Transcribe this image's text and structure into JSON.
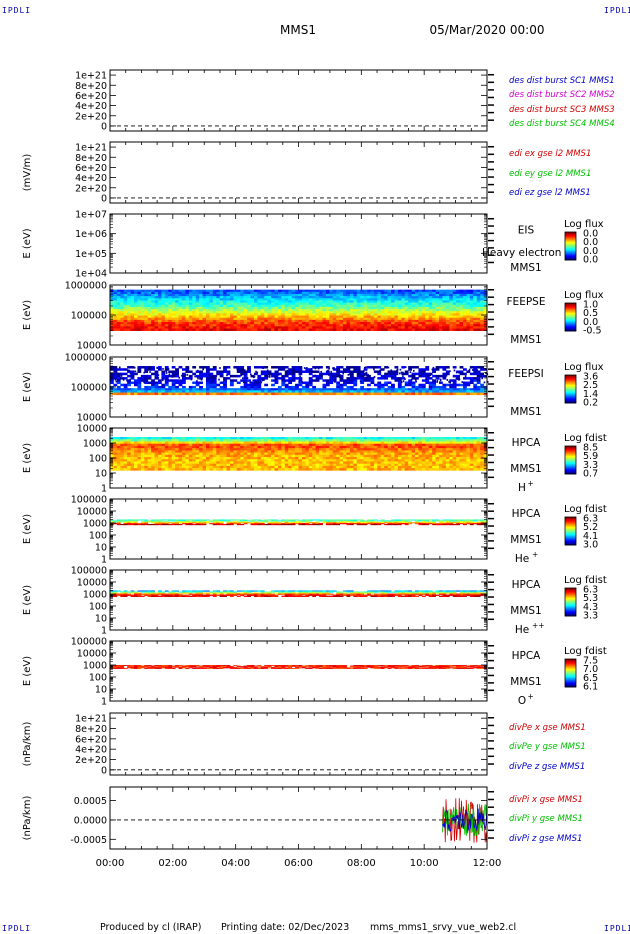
{
  "header": {
    "spacecraft": "MMS1",
    "date": "05/Mar/2020 00:00",
    "corner_label": "IPDLI"
  },
  "footer": {
    "producer": "Produced by cl (IRAP)",
    "printing_date": "Printing date: 02/Dec/2023",
    "filename": "mms_mms1_srvy_vue_web2.cl"
  },
  "colors": {
    "mms1": "#0000c8",
    "mms2": "#d000d0",
    "mms3": "#d00000",
    "mms4": "#00c000",
    "x_component": "#d00000",
    "y_component": "#00c000",
    "z_component": "#0000c8"
  },
  "chart_data": [
    {
      "id": "p1",
      "type": "line",
      "title": "",
      "xlabel": "",
      "ylabel": "",
      "ylim": [
        -1e+20,
        1.1e+21
      ],
      "yticks": [
        "0",
        "2e+20",
        "4e+20",
        "6e+20",
        "8e+20",
        "1e+21"
      ],
      "legend_position": "right",
      "series": [
        {
          "name": "des dist burst SC1 MMS1",
          "color_key": "mms1",
          "values": []
        },
        {
          "name": "des dist burst SC2 MMS2",
          "color_key": "mms2",
          "values": []
        },
        {
          "name": "des dist burst SC3 MMS3",
          "color_key": "mms3",
          "values": []
        },
        {
          "name": "des dist burst SC4 MMS4",
          "color_key": "mms4",
          "values": []
        }
      ]
    },
    {
      "id": "p2",
      "type": "line",
      "ylabel": "(mV/m)",
      "ylim": [
        -1e+20,
        1.1e+21
      ],
      "yticks": [
        "0",
        "2e+20",
        "4e+20",
        "6e+20",
        "8e+20",
        "1e+21"
      ],
      "legend_position": "right",
      "series": [
        {
          "name": "edi ex gse l2 MMS1",
          "color_key": "x_component",
          "values": []
        },
        {
          "name": "edi ey gse l2 MMS1",
          "color_key": "y_component",
          "values": []
        },
        {
          "name": "edi ez gse l2 MMS1",
          "color_key": "z_component",
          "values": []
        }
      ]
    },
    {
      "id": "p3",
      "type": "heatmap",
      "ylabel": "E (eV)",
      "scale": "log",
      "ylim": [
        10000,
        10000000
      ],
      "yticks": [
        "1e+04",
        "1e+05",
        "1e+06",
        "1e+07"
      ],
      "instrument": [
        "EIS",
        "MMS1"
      ],
      "overlap_text": "Heavy electron to",
      "colorbar": {
        "label": "Log flux",
        "ticks": [
          "0.0",
          "0.0",
          "0.0",
          "0.0"
        ]
      },
      "data": null
    },
    {
      "id": "p4",
      "type": "heatmap",
      "ylabel": "E (eV)",
      "scale": "log",
      "ylim": [
        10000,
        1000000
      ],
      "yticks": [
        "10000",
        "100000",
        "1000000"
      ],
      "instrument": [
        "FEEPSE",
        "MMS1"
      ],
      "colorbar": {
        "label": "Log flux",
        "ticks": [
          "1.0",
          "0.5",
          "0.0",
          "-0.5"
        ]
      },
      "data": {
        "energy_range": [
          30000,
          700000
        ],
        "level_by_energy": [
          [
            30000,
            0.9
          ],
          [
            60000,
            0.8
          ],
          [
            100000,
            0.65
          ],
          [
            200000,
            0.45
          ],
          [
            400000,
            0.3
          ],
          [
            600000,
            0.2
          ]
        ]
      }
    },
    {
      "id": "p5",
      "type": "heatmap",
      "ylabel": "E (eV)",
      "scale": "log",
      "ylim": [
        10000,
        1000000
      ],
      "yticks": [
        "10000",
        "100000",
        "1000000"
      ],
      "instrument": [
        "FEEPSI",
        "MMS1"
      ],
      "colorbar": {
        "label": "Log flux",
        "ticks": [
          "3.6",
          "2.5",
          "1.4",
          "0.2"
        ]
      },
      "data": {
        "energy_range": [
          55000,
          500000
        ],
        "level_by_energy": [
          [
            55000,
            1.0
          ],
          [
            70000,
            0.3
          ],
          [
            100000,
            0.15
          ],
          [
            200000,
            0.08
          ],
          [
            400000,
            0.05
          ]
        ]
      }
    },
    {
      "id": "p6",
      "type": "heatmap",
      "ylabel": "E (eV)",
      "scale": "log",
      "ylim": [
        1,
        10000
      ],
      "yticks": [
        "1",
        "10",
        "100",
        "1000",
        "10000"
      ],
      "instrument": [
        "HPCA",
        "MMS1"
      ],
      "species": "H",
      "charge": "+",
      "colorbar": {
        "label": "Log fdist",
        "ticks": [
          "8.5",
          "5.9",
          "3.3",
          "0.7"
        ]
      },
      "data": {
        "energy_range": [
          15,
          2500
        ],
        "level_by_energy": [
          [
            15,
            0.7
          ],
          [
            60,
            0.68
          ],
          [
            250,
            0.72
          ],
          [
            700,
            0.82
          ],
          [
            1500,
            0.5
          ],
          [
            2200,
            0.38
          ]
        ]
      }
    },
    {
      "id": "p7",
      "type": "heatmap",
      "ylabel": "E (eV)",
      "scale": "log",
      "ylim": [
        1,
        100000
      ],
      "yticks": [
        "1",
        "10",
        "100",
        "1000",
        "10000",
        "100000"
      ],
      "instrument": [
        "HPCA",
        "MMS1"
      ],
      "species": "He",
      "charge": "+",
      "colorbar": {
        "label": "Log fdist",
        "ticks": [
          "6.3",
          "5.2",
          "4.1",
          "3.0"
        ]
      },
      "data": {
        "energy_range": [
          700,
          2000
        ],
        "level_by_energy": [
          [
            700,
            1.0
          ],
          [
            1500,
            0.45
          ]
        ]
      }
    },
    {
      "id": "p8",
      "type": "heatmap",
      "ylabel": "E (eV)",
      "scale": "log",
      "ylim": [
        1,
        100000
      ],
      "yticks": [
        "1",
        "10",
        "100",
        "1000",
        "10000",
        "100000"
      ],
      "instrument": [
        "HPCA",
        "MMS1"
      ],
      "species": "He",
      "charge": "++",
      "colorbar": {
        "label": "Log fdist",
        "ticks": [
          "6.3",
          "5.3",
          "4.3",
          "3.3"
        ]
      },
      "data": {
        "energy_range": [
          600,
          2000
        ],
        "level_by_energy": [
          [
            700,
            0.9
          ],
          [
            1000,
            0.8
          ],
          [
            1700,
            0.3
          ]
        ]
      }
    },
    {
      "id": "p9",
      "type": "heatmap",
      "ylabel": "E (eV)",
      "scale": "log",
      "ylim": [
        1,
        100000
      ],
      "yticks": [
        "1",
        "10",
        "100",
        "1000",
        "10000",
        "100000"
      ],
      "instrument": [
        "HPCA",
        "MMS1"
      ],
      "species": "O",
      "charge": "+",
      "colorbar": {
        "label": "Log fdist",
        "ticks": [
          "7.5",
          "7.0",
          "6.5",
          "6.1"
        ]
      },
      "data": {
        "energy_range": [
          500,
          1000
        ],
        "level_by_energy": [
          [
            700,
            0.85
          ]
        ]
      }
    },
    {
      "id": "p10",
      "type": "line",
      "ylabel": "(nPa/km)",
      "ylim": [
        -1e+20,
        1.1e+21
      ],
      "yticks": [
        "0",
        "2e+20",
        "4e+20",
        "6e+20",
        "8e+20",
        "1e+21"
      ],
      "legend_position": "right",
      "series": [
        {
          "name": "divPe x gse MMS1",
          "color_key": "x_component",
          "values": []
        },
        {
          "name": "divPe y gse MMS1",
          "color_key": "y_component",
          "values": []
        },
        {
          "name": "divPe z gse MMS1",
          "color_key": "z_component",
          "values": []
        }
      ]
    },
    {
      "id": "p11",
      "type": "line",
      "ylabel": "(nPa/km)",
      "ylim": [
        -0.00075,
        0.00085
      ],
      "yticks": [
        "-0.0005",
        "0.0000",
        "0.0005"
      ],
      "legend_position": "right",
      "x_data_start": "10:35",
      "series": [
        {
          "name": "divPi x gse MMS1",
          "color_key": "x_component",
          "amplitude": 0.0006
        },
        {
          "name": "divPi y gse MMS1",
          "color_key": "y_component",
          "amplitude": 0.00045
        },
        {
          "name": "divPi z gse MMS1",
          "color_key": "z_component",
          "amplitude": 0.0003
        }
      ]
    }
  ],
  "x_axis": {
    "range": [
      "00:00",
      "12:00"
    ],
    "ticks": [
      "00:00",
      "02:00",
      "04:00",
      "06:00",
      "08:00",
      "10:00",
      "12:00"
    ]
  }
}
